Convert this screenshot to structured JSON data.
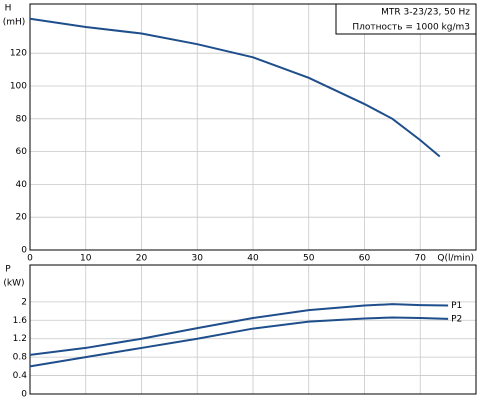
{
  "chart_data": [
    {
      "type": "line",
      "ylabel": "H",
      "yunit": "(mH)",
      "xlabel": "Q(l/min)",
      "annotations": [
        "MTR 3-23/23, 50 Hz",
        "Плотность = 1000 kg/m3"
      ],
      "xlim": [
        0,
        80
      ],
      "xticks": [
        0,
        10,
        20,
        30,
        40,
        50,
        60,
        70
      ],
      "ylim": [
        0,
        150
      ],
      "yticks": [
        0,
        20,
        40,
        60,
        80,
        100,
        120
      ],
      "grid": true,
      "x": [
        0,
        10,
        20,
        30,
        40,
        50,
        60,
        65,
        70,
        73.5
      ],
      "series": [
        {
          "color": "#1f4e8c",
          "values": [
            141,
            136,
            132,
            125.5,
            117.5,
            105,
            89,
            80,
            67,
            57
          ]
        }
      ]
    },
    {
      "type": "line",
      "ylabel": "P",
      "yunit": "(kW)",
      "xlim": [
        0,
        80
      ],
      "ylim": [
        0,
        2.8
      ],
      "yticks": [
        0,
        0.4,
        0.8,
        1.2,
        1.6,
        2
      ],
      "grid": true,
      "x": [
        0,
        10,
        20,
        30,
        40,
        50,
        60,
        65,
        70,
        75
      ],
      "series": [
        {
          "name": "P1",
          "color": "#1f4e8c",
          "values": [
            0.85,
            1.0,
            1.2,
            1.43,
            1.65,
            1.82,
            1.92,
            1.95,
            1.93,
            1.92
          ]
        },
        {
          "name": "P2",
          "color": "#1f4e8c",
          "values": [
            0.6,
            0.8,
            1.0,
            1.2,
            1.42,
            1.57,
            1.64,
            1.66,
            1.65,
            1.63
          ]
        }
      ]
    }
  ]
}
